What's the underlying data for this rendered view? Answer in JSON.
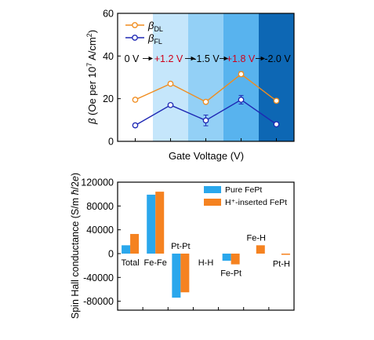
{
  "chart_data": [
    {
      "type": "line",
      "xlabel": "Gate Voltage (V)",
      "ylabel": "β (Oe per 10⁷ A/cm²)",
      "ylim": [
        0,
        60
      ],
      "yticks": [
        "0",
        "20",
        "40",
        "60"
      ],
      "grid": false,
      "legend_position": "top-left",
      "x": [
        1,
        2,
        3,
        4,
        5
      ],
      "voltage_sequence": [
        "0 V",
        "+1.2 V",
        "-1.5 V",
        "+1.8 V",
        "-2.0 V"
      ],
      "annotation_colors": [
        "#000000",
        "#d0021b",
        "#000000",
        "#d0021b",
        "#000000"
      ],
      "band_colors": [
        "#c5e6fb",
        "#93d0f6",
        "#58b3ee",
        "#0d67b4"
      ],
      "series": [
        {
          "name": "βDL",
          "legend_main": "β",
          "legend_sub": "DL",
          "color": "#f08c1e",
          "values": [
            19.5,
            27,
            18.5,
            31.5,
            19
          ],
          "errors": [
            0.8,
            0.8,
            0.8,
            1.2,
            0.6
          ]
        },
        {
          "name": "βFL",
          "legend_main": "β",
          "legend_sub": "FL",
          "color": "#1e28b4",
          "values": [
            7.5,
            17,
            9.8,
            19.5,
            8
          ],
          "errors": [
            0.8,
            0.8,
            2.5,
            2.0,
            0.8
          ]
        }
      ]
    },
    {
      "type": "bar",
      "ylabel": "Spin Hall conductance (S/m ħ/2e)",
      "ylim": [
        -95000,
        120000
      ],
      "yticks": [
        "-80000",
        "-40000",
        "0",
        "40000",
        "80000",
        "120000"
      ],
      "categories": [
        "Total",
        "Fe-Fe",
        "Pt-Pt",
        "H-H",
        "Fe-Pt",
        "Fe-H",
        "Pt-H"
      ],
      "category_label_side": [
        "below",
        "below",
        "above",
        "below",
        "below",
        "above",
        "below"
      ],
      "grid": false,
      "legend_position": "top-right",
      "series": [
        {
          "name": "Pure FePt",
          "color": "#2aa7ec",
          "values": [
            14000,
            99000,
            -74000,
            0,
            -12000,
            0,
            0
          ]
        },
        {
          "name": "H⁺-inserted FePt",
          "color": "#f58220",
          "values": [
            33000,
            104000,
            -65000,
            0,
            -18000,
            14000,
            -2000
          ]
        }
      ]
    }
  ]
}
